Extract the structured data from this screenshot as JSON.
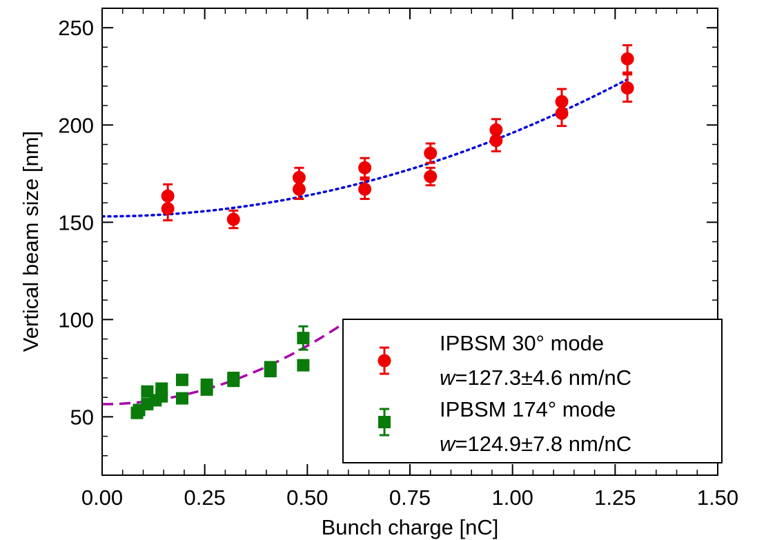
{
  "chart_data": {
    "type": "scatter",
    "title": "",
    "xlabel": "Bunch charge [nC]",
    "ylabel": "Vertical beam size [nm]",
    "xlim": [
      0.0,
      1.5
    ],
    "ylim": [
      20,
      260
    ],
    "xticks": [
      "0.00",
      "0.25",
      "0.50",
      "0.75",
      "1.00",
      "1.25",
      "1.50"
    ],
    "yticks": [
      "50",
      "100",
      "150",
      "200",
      "250"
    ],
    "grid": false,
    "legend_position": "bottom-right",
    "series": [
      {
        "name": "IPBSM 30° mode",
        "fit_label": "w=127.3±4.6 nm/nC",
        "fit_label_italic": "w",
        "fit_label_rest": "=127.3±4.6 nm/nC",
        "marker": "circle",
        "color": "#ee0000",
        "points": [
          {
            "x": 0.16,
            "y": 163.5,
            "err": 6
          },
          {
            "x": 0.16,
            "y": 157.0,
            "err": 6
          },
          {
            "x": 0.32,
            "y": 151.5,
            "err": 4.5
          },
          {
            "x": 0.48,
            "y": 173.0,
            "err": 5
          },
          {
            "x": 0.48,
            "y": 167.0,
            "err": 5
          },
          {
            "x": 0.64,
            "y": 178.0,
            "err": 5
          },
          {
            "x": 0.64,
            "y": 167.0,
            "err": 5
          },
          {
            "x": 0.8,
            "y": 185.5,
            "err": 5
          },
          {
            "x": 0.8,
            "y": 173.5,
            "err": 4.5
          },
          {
            "x": 0.96,
            "y": 197.5,
            "err": 5.5
          },
          {
            "x": 0.96,
            "y": 192.0,
            "err": 5.5
          },
          {
            "x": 1.12,
            "y": 212.0,
            "err": 6.5
          },
          {
            "x": 1.12,
            "y": 206.0,
            "err": 6.5
          },
          {
            "x": 1.28,
            "y": 234.0,
            "err": 7
          },
          {
            "x": 1.28,
            "y": 219.0,
            "err": 7
          }
        ],
        "fit": {
          "style": "dotted",
          "color": "#0000dd",
          "y0": 153,
          "k": 43.0,
          "xrange": [
            0.0,
            1.28
          ]
        }
      },
      {
        "name": "IPBSM 174° mode",
        "fit_label": "w=124.9±7.8 nm/nC",
        "fit_label_italic": "w",
        "fit_label_rest": "=124.9±7.8 nm/nC",
        "marker": "square",
        "color": "#0a7a0a",
        "points": [
          {
            "x": 0.085,
            "y": 52.0
          },
          {
            "x": 0.09,
            "y": 53.5
          },
          {
            "x": 0.11,
            "y": 63.0
          },
          {
            "x": 0.11,
            "y": 56.5
          },
          {
            "x": 0.13,
            "y": 58.5
          },
          {
            "x": 0.145,
            "y": 64.5
          },
          {
            "x": 0.145,
            "y": 60.5
          },
          {
            "x": 0.195,
            "y": 69.0
          },
          {
            "x": 0.195,
            "y": 59.5
          },
          {
            "x": 0.255,
            "y": 66.5
          },
          {
            "x": 0.255,
            "y": 64.0
          },
          {
            "x": 0.32,
            "y": 70.0
          },
          {
            "x": 0.32,
            "y": 68.5
          },
          {
            "x": 0.41,
            "y": 75.5
          },
          {
            "x": 0.41,
            "y": 73.5
          },
          {
            "x": 0.49,
            "y": 90.5,
            "err": 6
          },
          {
            "x": 0.49,
            "y": 76.5
          }
        ],
        "fit": {
          "style": "dashed",
          "color": "#aa00aa",
          "y0": 56.5,
          "k": 120.0,
          "xrange": [
            0.0,
            0.58
          ]
        }
      }
    ]
  }
}
